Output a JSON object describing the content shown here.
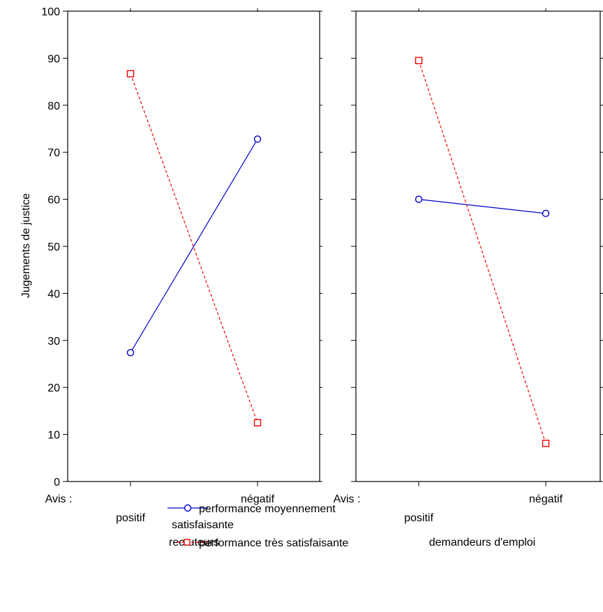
{
  "chart_data": {
    "type": "line",
    "ylabel": "Jugements de justice",
    "ylim": [
      0,
      100
    ],
    "yticks": [
      "0",
      "10",
      "20",
      "30",
      "40",
      "50",
      "60",
      "70",
      "80",
      "90",
      "100"
    ],
    "x_prefix": "Avis :",
    "categories": [
      "positif",
      "négatif"
    ],
    "panels": [
      {
        "label": "recruteurs",
        "series": [
          {
            "name": "performance moyennement satisfaisante",
            "values": [
              27.4,
              72.8
            ]
          },
          {
            "name": "performance très satisfaisante",
            "values": [
              86.7,
              12.5
            ]
          }
        ]
      },
      {
        "label": "demandeurs d'emploi",
        "series": [
          {
            "name": "performance moyennement satisfaisante",
            "values": [
              60.0,
              57.0
            ]
          },
          {
            "name": "performance très satisfaisante",
            "values": [
              89.5,
              8.1
            ]
          }
        ]
      }
    ],
    "legend": {
      "placement": "bottom",
      "entries": [
        {
          "line1": "performance moyennement",
          "line2": "satisfaisante",
          "color": "#0000cc",
          "marker": "circle",
          "style": "solid"
        },
        {
          "line1": "performance très satisfaisante",
          "color": "#ee0000",
          "marker": "square",
          "style": "dashed"
        }
      ]
    },
    "colors": {
      "series1": "#0000cc",
      "series2": "#ee0000"
    },
    "grid": false
  }
}
